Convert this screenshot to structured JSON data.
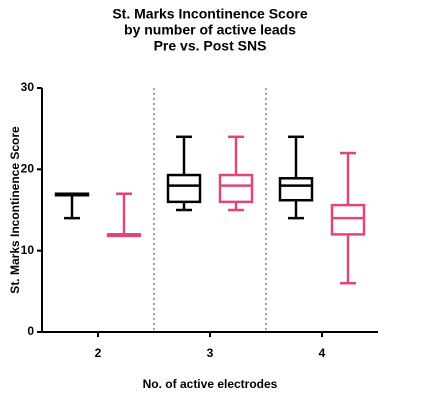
{
  "chart_data": {
    "type": "box",
    "title": [
      "St. Marks Incontinence Score",
      "by number of active leads",
      "Pre vs.  Post SNS"
    ],
    "y_label": "St. Marks  Incontinence Score",
    "x_label": "No. of active electrodes",
    "categories": [
      "2",
      "3",
      "4"
    ],
    "ylim": [
      0,
      30
    ],
    "yticks": [
      0,
      10,
      20,
      30
    ],
    "series": [
      {
        "color": "#000000",
        "min": [
          14,
          15,
          14
        ],
        "q1": [
          17,
          16,
          16.2
        ],
        "median": [
          17,
          18,
          18
        ],
        "q3": [
          17,
          19.3,
          18.9
        ],
        "max": [
          17,
          24,
          24
        ]
      },
      {
        "color": "#e0457b",
        "min": [
          12,
          15,
          6
        ],
        "q1": [
          12,
          16,
          12
        ],
        "median": [
          12,
          18,
          14
        ],
        "q3": [
          12,
          19.3,
          15.6
        ],
        "max": [
          17,
          24,
          22
        ]
      }
    ]
  }
}
